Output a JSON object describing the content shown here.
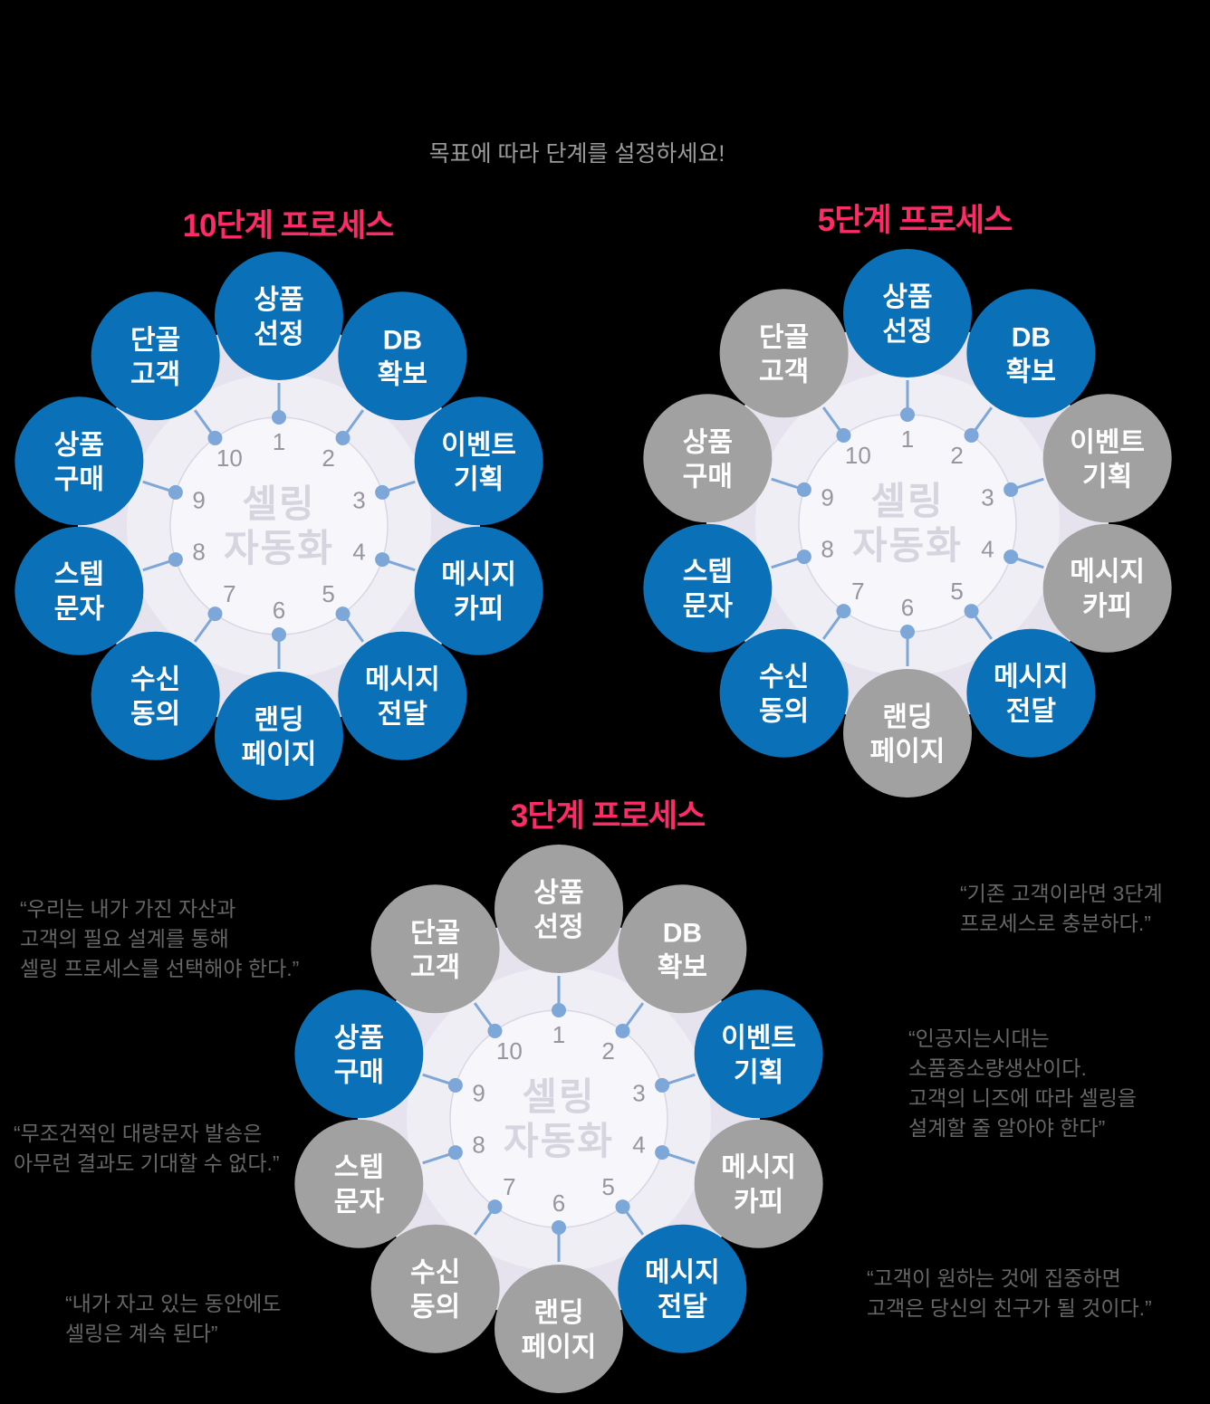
{
  "header": {
    "text": "목표에 따라 단계를 설정하세요!"
  },
  "center_label_lines": [
    "셀링",
    "자동화"
  ],
  "steps": [
    {
      "num": 1,
      "label": [
        "상품",
        "선정"
      ]
    },
    {
      "num": 2,
      "label": [
        "DB",
        "확보"
      ]
    },
    {
      "num": 3,
      "label": [
        "이벤트",
        "기획"
      ]
    },
    {
      "num": 4,
      "label": [
        "메시지",
        "카피"
      ]
    },
    {
      "num": 5,
      "label": [
        "메시지",
        "전달"
      ]
    },
    {
      "num": 6,
      "label": [
        "랜딩",
        "페이지"
      ]
    },
    {
      "num": 7,
      "label": [
        "수신",
        "동의"
      ]
    },
    {
      "num": 8,
      "label": [
        "스텝",
        "문자"
      ]
    },
    {
      "num": 9,
      "label": [
        "상품",
        "구매"
      ]
    },
    {
      "num": 10,
      "label": [
        "단골",
        "고객"
      ]
    }
  ],
  "diagrams": [
    {
      "key": "ten",
      "title": "10단계 프로세스",
      "active_steps": [
        1,
        2,
        3,
        4,
        5,
        6,
        7,
        8,
        9,
        10
      ]
    },
    {
      "key": "five",
      "title": "5단계 프로세스",
      "active_steps": [
        1,
        2,
        5,
        7,
        8
      ]
    },
    {
      "key": "three",
      "title": "3단계 프로세스",
      "active_steps": [
        3,
        5,
        9
      ]
    }
  ],
  "quotes": [
    {
      "lines": [
        "“우리는 내가 가진 자산과",
        "고객의 필요 설계를 통해",
        "셀링 프로세스를 선택해야 한다.”"
      ]
    },
    {
      "lines": [
        "“기존 고객이라면 3단계",
        "프로세스로 충분하다.”"
      ]
    },
    {
      "lines": [
        "“인공지는시대는",
        "소품종소량생산이다.",
        "고객의 니즈에 따라 셀링을",
        "설계할 줄 알아야 한다”"
      ]
    },
    {
      "lines": [
        "“무조건적인 대량문자 발송은",
        "아무런 결과도 기대할 수 없다.”"
      ]
    },
    {
      "lines": [
        "“내가 자고 있는 동안에도",
        "셀링은 계속 된다”"
      ]
    },
    {
      "lines": [
        "“고객이 원하는 것에 집중하면",
        "고객은 당신의 친구가 될 것이다.”"
      ]
    }
  ],
  "style": {
    "background": "#000000",
    "title_pink": "#ff2b66",
    "node_blue": "#0a70b8",
    "node_gray": "#a1a1a1",
    "node_text": "#ffffff",
    "disc_outer": "#e6e3ee",
    "disc_mid": "#f0eef5",
    "disc_inner": "#f7f6fa",
    "ring_stroke": "#d9d6e4",
    "connector": "#7da7d8",
    "number_gray": "#97959f",
    "center_text": "#d6d4de",
    "header_gray": "#9a9a9a",
    "quote_gray": "#666666"
  }
}
